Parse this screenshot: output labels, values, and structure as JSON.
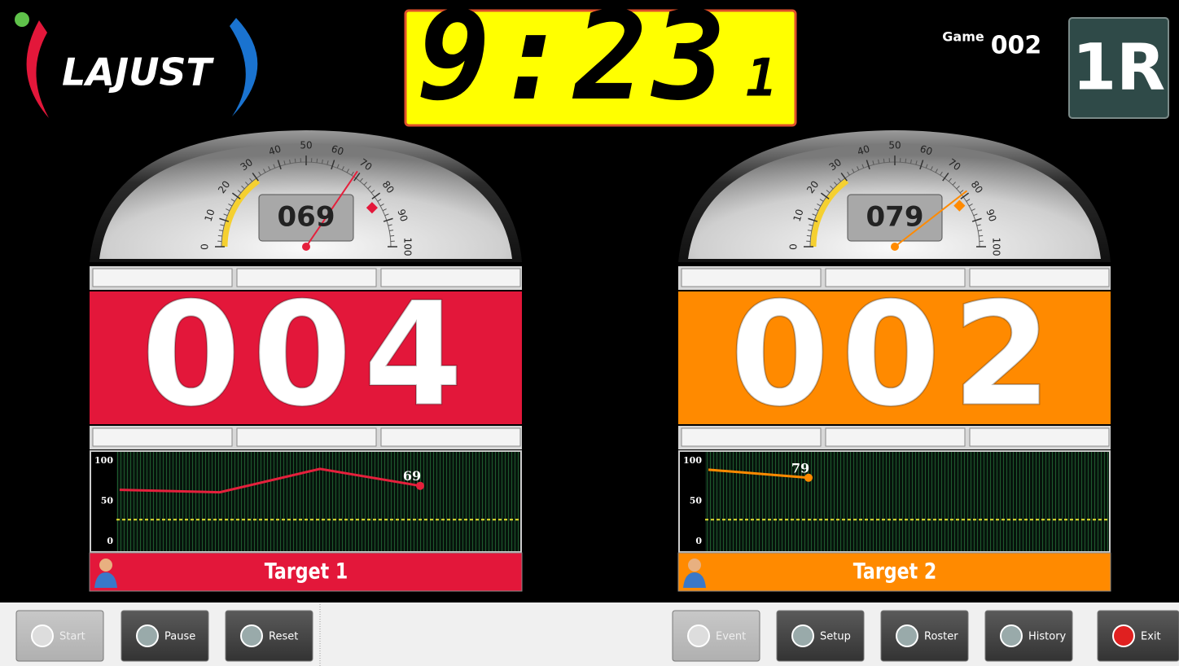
{
  "header": {
    "logo": "LAJUST",
    "timer": "9:23",
    "timer_tenths": "1",
    "game_label": "Game",
    "game_number": "002",
    "round": "1R"
  },
  "gauge_ticks": [
    0,
    10,
    20,
    30,
    40,
    50,
    60,
    70,
    80,
    90,
    100
  ],
  "chart_yticks": [
    0,
    50,
    100
  ],
  "targets": [
    {
      "name": "Target 1",
      "color": "#e3173a",
      "line_color": "#e5203c",
      "readout": "069",
      "marker": 83,
      "score": "004",
      "chart_values": [
        64,
        61,
        90,
        69
      ],
      "threshold": 27
    },
    {
      "name": "Target 2",
      "color": "#ff8a00",
      "line_color": "#ff8a00",
      "readout": "079",
      "marker": 82,
      "score": "002",
      "chart_values": [
        89,
        79
      ],
      "threshold": 27
    }
  ],
  "toolbar": {
    "left": [
      {
        "label": "Start",
        "enabled": false
      },
      {
        "label": "Pause",
        "enabled": true
      },
      {
        "label": "Reset",
        "enabled": true
      }
    ],
    "right": [
      {
        "label": "Event",
        "enabled": false
      },
      {
        "label": "Setup",
        "enabled": true
      },
      {
        "label": "Roster",
        "enabled": true
      },
      {
        "label": "History",
        "enabled": true
      },
      {
        "label": "Exit",
        "enabled": true
      }
    ]
  }
}
